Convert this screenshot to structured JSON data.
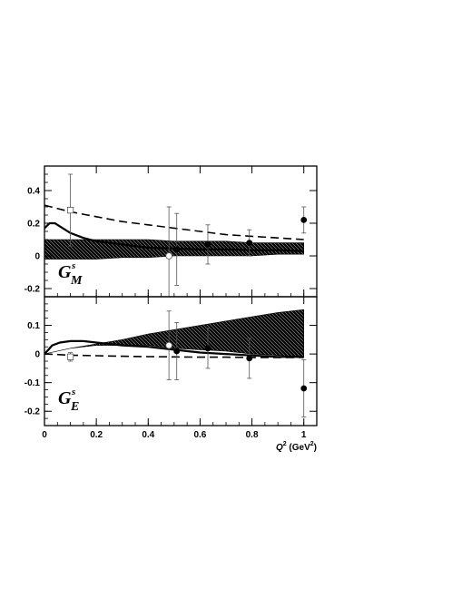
{
  "chart_data": [
    {
      "type": "scatter",
      "panel": "top",
      "label": {
        "main": "G",
        "sup": "s",
        "sub": "M"
      },
      "xlim": [
        0,
        1.05
      ],
      "ylim": [
        -0.25,
        0.55
      ],
      "yticks": [
        -0.2,
        0,
        0.2,
        0.4
      ],
      "ytick_labels": [
        "-0.2",
        "0",
        "0.2",
        "0.4"
      ],
      "grid": false,
      "band": {
        "name": "",
        "x": [
          0,
          0.1,
          0.2,
          0.3,
          0.4,
          0.5,
          0.6,
          0.7,
          0.8,
          0.9,
          1.0
        ],
        "lower": [
          -0.02,
          -0.02,
          -0.02,
          -0.01,
          -0.01,
          0.0,
          0.0,
          0.0,
          0.0,
          0.01,
          0.01
        ],
        "upper": [
          0.1,
          0.1,
          0.1,
          0.1,
          0.1,
          0.09,
          0.09,
          0.09,
          0.08,
          0.08,
          0.08
        ]
      },
      "solid_curve": {
        "x": [
          0,
          0.02,
          0.04,
          0.06,
          0.1,
          0.15,
          0.2,
          0.3,
          0.4,
          0.5,
          0.6,
          0.7,
          0.8,
          0.9,
          1.0
        ],
        "y": [
          0.17,
          0.2,
          0.2,
          0.18,
          0.14,
          0.11,
          0.09,
          0.07,
          0.05,
          0.045,
          0.04,
          0.04,
          0.035,
          0.035,
          0.03
        ]
      },
      "dashed_curve": {
        "x": [
          0,
          0.1,
          0.2,
          0.3,
          0.4,
          0.5,
          0.6,
          0.7,
          0.8,
          0.9,
          1.0
        ],
        "y": [
          0.31,
          0.27,
          0.24,
          0.21,
          0.19,
          0.17,
          0.15,
          0.13,
          0.12,
          0.11,
          0.1
        ]
      },
      "points": [
        {
          "x": 0.1,
          "y": 0.28,
          "err": 0.22,
          "marker": "open-square"
        },
        {
          "x": 0.48,
          "y": 0.0,
          "err": 0.3,
          "marker": "open-circle"
        },
        {
          "x": 0.51,
          "y": 0.04,
          "err": 0.22,
          "marker": "filled-circle"
        },
        {
          "x": 0.63,
          "y": 0.07,
          "err": 0.12,
          "marker": "filled-circle"
        },
        {
          "x": 0.79,
          "y": 0.08,
          "err": 0.08,
          "marker": "filled-circle"
        },
        {
          "x": 1.0,
          "y": 0.22,
          "err": 0.08,
          "marker": "filled-circle"
        }
      ]
    },
    {
      "type": "scatter",
      "panel": "bottom",
      "label": {
        "main": "G",
        "sup": "s",
        "sub": "E"
      },
      "xlim": [
        0,
        1.05
      ],
      "ylim": [
        -0.25,
        0.2
      ],
      "xticks": [
        0,
        0.2,
        0.4,
        0.6,
        0.8,
        1
      ],
      "xtick_labels": [
        "0",
        "0.2",
        "0.4",
        "0.6",
        "0.8",
        "1"
      ],
      "yticks": [
        -0.2,
        -0.1,
        0,
        0.1
      ],
      "ytick_labels": [
        "-0.2",
        "-0.1",
        "0",
        "0.1"
      ],
      "xlabel": {
        "main": "Q",
        "sup": "2",
        "unit_pre": " (GeV",
        "unit_sup": "2",
        "unit_post": ")"
      },
      "grid": false,
      "band": {
        "name": "",
        "x": [
          0,
          0.1,
          0.2,
          0.3,
          0.4,
          0.5,
          0.6,
          0.7,
          0.8,
          0.9,
          1.0
        ],
        "lower": [
          0.0,
          0.02,
          0.03,
          0.03,
          0.03,
          0.02,
          0.015,
          0.01,
          0.0,
          -0.005,
          -0.01
        ],
        "upper": [
          0.0,
          0.02,
          0.035,
          0.05,
          0.07,
          0.085,
          0.1,
          0.115,
          0.13,
          0.145,
          0.155
        ]
      },
      "solid_curve": {
        "x": [
          0,
          0.03,
          0.06,
          0.1,
          0.15,
          0.2,
          0.3,
          0.4,
          0.5,
          0.6,
          0.7,
          0.8,
          0.9,
          1.0
        ],
        "y": [
          0.0,
          0.03,
          0.04,
          0.045,
          0.045,
          0.04,
          0.03,
          0.025,
          0.015,
          0.005,
          0.0,
          -0.005,
          -0.01,
          -0.01
        ]
      },
      "dashed_curve": {
        "x": [
          0,
          0.1,
          0.2,
          0.3,
          0.4,
          0.5,
          0.6,
          0.7,
          0.8,
          0.9,
          1.0
        ],
        "y": [
          0.0,
          -0.004,
          -0.006,
          -0.008,
          -0.009,
          -0.01,
          -0.011,
          -0.011,
          -0.012,
          -0.012,
          -0.012
        ]
      },
      "points": [
        {
          "x": 0.1,
          "y": -0.01,
          "err": 0.015,
          "marker": "open-square"
        },
        {
          "x": 0.48,
          "y": 0.03,
          "err": 0.12,
          "marker": "open-circle"
        },
        {
          "x": 0.51,
          "y": 0.01,
          "err": 0.1,
          "marker": "filled-circle"
        },
        {
          "x": 0.63,
          "y": 0.02,
          "err": 0.07,
          "marker": "filled-circle"
        },
        {
          "x": 0.79,
          "y": -0.015,
          "err": 0.07,
          "marker": "filled-circle"
        },
        {
          "x": 1.0,
          "y": -0.12,
          "err": 0.1,
          "marker": "filled-circle"
        }
      ]
    }
  ]
}
